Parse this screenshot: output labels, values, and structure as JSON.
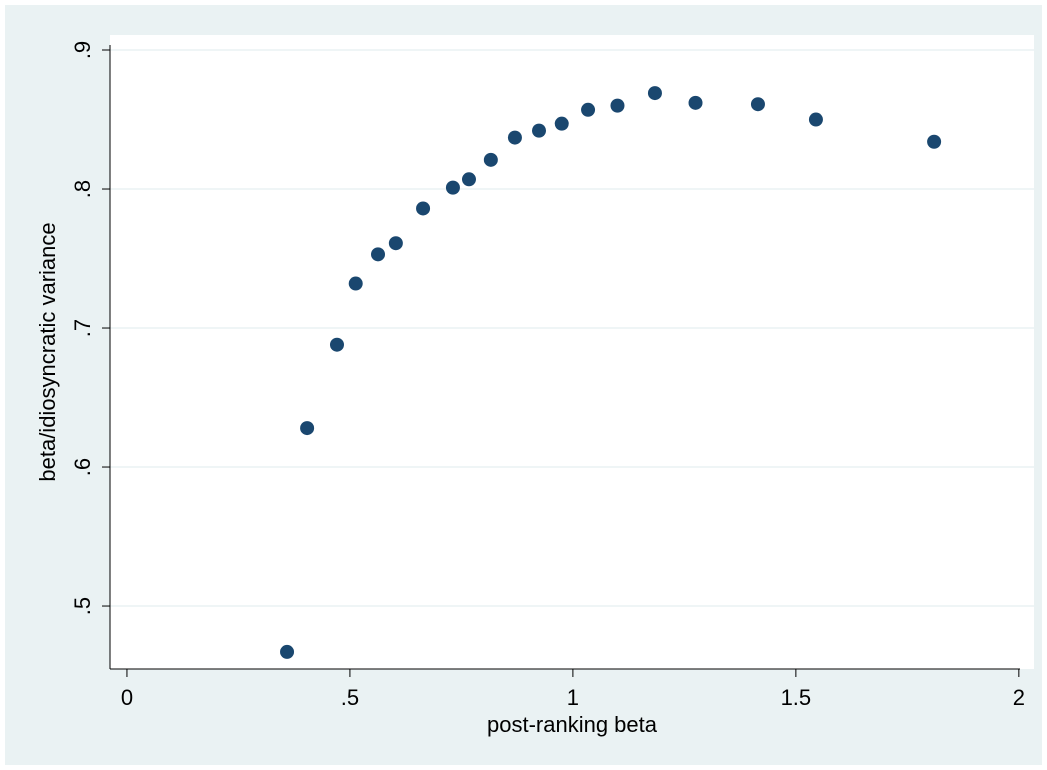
{
  "chart_data": {
    "type": "scatter",
    "x_label": "post-ranking beta",
    "y_label": "beta/idiosyncratic variance",
    "x": [
      0.359,
      0.404,
      0.471,
      0.513,
      0.563,
      0.603,
      0.664,
      0.731,
      0.767,
      0.816,
      0.87,
      0.924,
      0.975,
      1.034,
      1.1,
      1.184,
      1.275,
      1.415,
      1.545,
      1.81
    ],
    "values": [
      0.467,
      0.628,
      0.688,
      0.732,
      0.753,
      0.761,
      0.786,
      0.801,
      0.807,
      0.821,
      0.837,
      0.842,
      0.847,
      0.857,
      0.86,
      0.869,
      0.862,
      0.861,
      0.85,
      0.834
    ],
    "color": "#1a476f",
    "xlim": [
      -0.038,
      2.034
    ],
    "ylim": [
      0.4547,
      0.9108
    ],
    "xticks": [
      0,
      {
        "value": 0.5,
        "label": ".5"
      },
      1,
      1.5,
      2
    ],
    "yticks": [
      {
        "value": 0.5,
        "label": ".5"
      },
      {
        "value": 0.6,
        "label": ".6"
      },
      {
        "value": 0.7,
        "label": ".7"
      },
      {
        "value": 0.8,
        "label": ".8"
      },
      {
        "value": 0.9,
        "label": ".9"
      }
    ],
    "grid": true
  }
}
